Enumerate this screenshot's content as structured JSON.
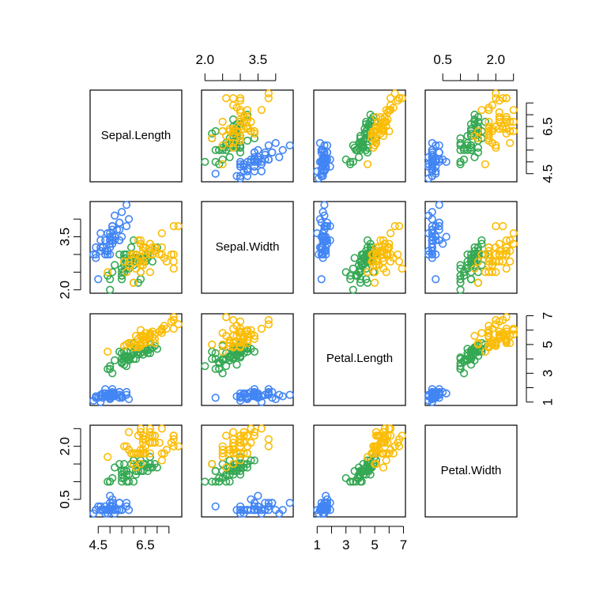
{
  "chart_data": {
    "type": "scatter-matrix",
    "variables": [
      "Sepal.Length",
      "Sepal.Width",
      "Petal.Length",
      "Petal.Width"
    ],
    "ranges": {
      "Sepal.Length": [
        4.3,
        7.9
      ],
      "Sepal.Width": [
        2.0,
        4.4
      ],
      "Petal.Length": [
        1.0,
        6.9
      ],
      "Petal.Width": [
        0.1,
        2.5
      ]
    },
    "axes": {
      "Sepal.Length": {
        "side": "left-bottom",
        "ticks": [
          4.5,
          5.0,
          5.5,
          6.0,
          6.5,
          7.0,
          7.5
        ],
        "labels": [
          "4.5",
          "6.5"
        ]
      },
      "Sepal.Width": {
        "side": "top-left",
        "ticks": [
          2.0,
          2.5,
          3.0,
          3.5,
          4.0
        ],
        "labels": [
          "2.0",
          "3.5"
        ]
      },
      "Petal.Length": {
        "side": "bottom-right",
        "ticks": [
          1,
          2,
          3,
          4,
          5,
          6,
          7
        ],
        "labels": [
          "1",
          "3",
          "5",
          "7"
        ]
      },
      "Petal.Width": {
        "side": "top-left",
        "ticks": [
          0.5,
          1.0,
          1.5,
          2.0,
          2.5
        ],
        "labels": [
          "0.5",
          "2.0"
        ]
      }
    },
    "series": [
      {
        "color": "#4285F4",
        "points": [
          [
            5.1,
            3.5,
            1.4,
            0.2
          ],
          [
            4.9,
            3.0,
            1.4,
            0.2
          ],
          [
            4.7,
            3.2,
            1.3,
            0.2
          ],
          [
            4.6,
            3.1,
            1.5,
            0.2
          ],
          [
            5.0,
            3.6,
            1.4,
            0.2
          ],
          [
            5.4,
            3.9,
            1.7,
            0.4
          ],
          [
            4.6,
            3.4,
            1.4,
            0.3
          ],
          [
            5.0,
            3.4,
            1.5,
            0.2
          ],
          [
            4.4,
            2.9,
            1.4,
            0.2
          ],
          [
            4.9,
            3.1,
            1.5,
            0.1
          ],
          [
            5.4,
            3.7,
            1.5,
            0.2
          ],
          [
            4.8,
            3.4,
            1.6,
            0.2
          ],
          [
            4.8,
            3.0,
            1.4,
            0.1
          ],
          [
            4.3,
            3.0,
            1.1,
            0.1
          ],
          [
            5.8,
            4.0,
            1.2,
            0.2
          ],
          [
            5.7,
            4.4,
            1.5,
            0.4
          ],
          [
            5.4,
            3.9,
            1.3,
            0.4
          ],
          [
            5.1,
            3.5,
            1.4,
            0.3
          ],
          [
            5.7,
            3.8,
            1.7,
            0.3
          ],
          [
            5.1,
            3.8,
            1.5,
            0.3
          ],
          [
            5.4,
            3.4,
            1.7,
            0.2
          ],
          [
            5.1,
            3.7,
            1.5,
            0.4
          ],
          [
            4.6,
            3.6,
            1.0,
            0.2
          ],
          [
            5.1,
            3.3,
            1.7,
            0.5
          ],
          [
            4.8,
            3.4,
            1.9,
            0.2
          ],
          [
            5.0,
            3.0,
            1.6,
            0.2
          ],
          [
            5.0,
            3.4,
            1.6,
            0.4
          ],
          [
            5.2,
            3.5,
            1.5,
            0.2
          ],
          [
            5.2,
            3.4,
            1.4,
            0.2
          ],
          [
            4.7,
            3.2,
            1.6,
            0.2
          ],
          [
            4.8,
            3.1,
            1.6,
            0.2
          ],
          [
            5.4,
            3.4,
            1.5,
            0.4
          ],
          [
            5.2,
            4.1,
            1.5,
            0.1
          ],
          [
            5.5,
            4.2,
            1.4,
            0.2
          ],
          [
            4.9,
            3.1,
            1.5,
            0.2
          ],
          [
            5.0,
            3.2,
            1.2,
            0.2
          ],
          [
            5.5,
            3.5,
            1.3,
            0.2
          ],
          [
            4.9,
            3.6,
            1.4,
            0.1
          ],
          [
            4.4,
            3.0,
            1.3,
            0.2
          ],
          [
            5.1,
            3.4,
            1.5,
            0.2
          ],
          [
            5.0,
            3.5,
            1.3,
            0.3
          ],
          [
            4.5,
            2.3,
            1.3,
            0.3
          ],
          [
            4.4,
            3.2,
            1.3,
            0.2
          ],
          [
            5.0,
            3.5,
            1.6,
            0.6
          ],
          [
            5.1,
            3.8,
            1.9,
            0.4
          ],
          [
            4.8,
            3.0,
            1.4,
            0.3
          ],
          [
            5.1,
            3.8,
            1.6,
            0.2
          ],
          [
            4.6,
            3.2,
            1.4,
            0.2
          ],
          [
            5.3,
            3.7,
            1.5,
            0.2
          ],
          [
            5.0,
            3.3,
            1.4,
            0.2
          ]
        ]
      },
      {
        "color": "#34A853",
        "points": [
          [
            7.0,
            3.2,
            4.7,
            1.4
          ],
          [
            6.4,
            3.2,
            4.5,
            1.5
          ],
          [
            6.9,
            3.1,
            4.9,
            1.5
          ],
          [
            5.5,
            2.3,
            4.0,
            1.3
          ],
          [
            6.5,
            2.8,
            4.6,
            1.5
          ],
          [
            5.7,
            2.8,
            4.5,
            1.3
          ],
          [
            6.3,
            3.3,
            4.7,
            1.6
          ],
          [
            4.9,
            2.4,
            3.3,
            1.0
          ],
          [
            6.6,
            2.9,
            4.6,
            1.3
          ],
          [
            5.2,
            2.7,
            3.9,
            1.4
          ],
          [
            5.0,
            2.0,
            3.5,
            1.0
          ],
          [
            5.9,
            3.0,
            4.2,
            1.5
          ],
          [
            6.0,
            2.2,
            4.0,
            1.0
          ],
          [
            6.1,
            2.9,
            4.7,
            1.4
          ],
          [
            5.6,
            2.9,
            3.6,
            1.3
          ],
          [
            6.7,
            3.1,
            4.4,
            1.4
          ],
          [
            5.6,
            3.0,
            4.5,
            1.5
          ],
          [
            5.8,
            2.7,
            4.1,
            1.0
          ],
          [
            6.2,
            2.2,
            4.5,
            1.5
          ],
          [
            5.6,
            2.5,
            3.9,
            1.1
          ],
          [
            5.9,
            3.2,
            4.8,
            1.8
          ],
          [
            6.1,
            2.8,
            4.0,
            1.3
          ],
          [
            6.3,
            2.5,
            4.9,
            1.5
          ],
          [
            6.1,
            2.8,
            4.7,
            1.2
          ],
          [
            6.4,
            2.9,
            4.3,
            1.3
          ],
          [
            6.6,
            3.0,
            4.4,
            1.4
          ],
          [
            6.8,
            2.8,
            4.8,
            1.4
          ],
          [
            6.7,
            3.0,
            5.0,
            1.7
          ],
          [
            6.0,
            2.9,
            4.5,
            1.5
          ],
          [
            5.7,
            2.6,
            3.5,
            1.0
          ],
          [
            5.5,
            2.4,
            3.8,
            1.1
          ],
          [
            5.5,
            2.4,
            3.7,
            1.0
          ],
          [
            5.8,
            2.7,
            3.9,
            1.2
          ],
          [
            6.0,
            2.7,
            5.1,
            1.6
          ],
          [
            5.4,
            3.0,
            4.5,
            1.5
          ],
          [
            6.0,
            3.4,
            4.5,
            1.6
          ],
          [
            6.7,
            3.1,
            4.7,
            1.5
          ],
          [
            6.3,
            2.3,
            4.4,
            1.3
          ],
          [
            5.6,
            3.0,
            4.1,
            1.3
          ],
          [
            5.5,
            2.5,
            4.0,
            1.3
          ],
          [
            5.5,
            2.6,
            4.4,
            1.2
          ],
          [
            6.1,
            3.0,
            4.6,
            1.4
          ],
          [
            5.8,
            2.6,
            4.0,
            1.2
          ],
          [
            5.0,
            2.3,
            3.3,
            1.0
          ],
          [
            5.6,
            2.7,
            4.2,
            1.3
          ],
          [
            5.7,
            3.0,
            4.2,
            1.2
          ],
          [
            5.7,
            2.9,
            4.2,
            1.3
          ],
          [
            6.2,
            2.9,
            4.3,
            1.3
          ],
          [
            5.1,
            2.5,
            3.0,
            1.1
          ],
          [
            5.7,
            2.8,
            4.1,
            1.3
          ]
        ]
      },
      {
        "color": "#FBBC05",
        "points": [
          [
            6.3,
            3.3,
            6.0,
            2.5
          ],
          [
            5.8,
            2.7,
            5.1,
            1.9
          ],
          [
            7.1,
            3.0,
            5.9,
            2.1
          ],
          [
            6.3,
            2.9,
            5.6,
            1.8
          ],
          [
            6.5,
            3.0,
            5.8,
            2.2
          ],
          [
            7.6,
            3.0,
            6.6,
            2.1
          ],
          [
            4.9,
            2.5,
            4.5,
            1.7
          ],
          [
            7.3,
            2.9,
            6.3,
            1.8
          ],
          [
            6.7,
            2.5,
            5.8,
            1.8
          ],
          [
            7.2,
            3.6,
            6.1,
            2.5
          ],
          [
            6.5,
            3.2,
            5.1,
            2.0
          ],
          [
            6.4,
            2.7,
            5.3,
            1.9
          ],
          [
            6.8,
            3.0,
            5.5,
            2.1
          ],
          [
            5.7,
            2.5,
            5.0,
            2.0
          ],
          [
            5.8,
            2.8,
            5.1,
            2.4
          ],
          [
            6.4,
            3.2,
            5.3,
            2.3
          ],
          [
            6.5,
            3.0,
            5.5,
            1.8
          ],
          [
            7.7,
            3.8,
            6.7,
            2.2
          ],
          [
            7.7,
            2.6,
            6.9,
            2.3
          ],
          [
            6.0,
            2.2,
            5.0,
            1.5
          ],
          [
            6.9,
            3.2,
            5.7,
            2.3
          ],
          [
            5.6,
            2.8,
            4.9,
            2.0
          ],
          [
            7.7,
            2.8,
            6.7,
            2.0
          ],
          [
            6.3,
            2.7,
            4.9,
            1.8
          ],
          [
            6.7,
            3.3,
            5.7,
            2.1
          ],
          [
            7.2,
            3.2,
            6.0,
            1.8
          ],
          [
            6.2,
            2.8,
            4.8,
            1.8
          ],
          [
            6.1,
            3.0,
            4.9,
            1.8
          ],
          [
            6.4,
            2.8,
            5.6,
            2.1
          ],
          [
            7.2,
            3.0,
            5.8,
            1.6
          ],
          [
            7.4,
            2.8,
            6.1,
            1.9
          ],
          [
            7.9,
            3.8,
            6.4,
            2.0
          ],
          [
            6.4,
            2.8,
            5.6,
            2.2
          ],
          [
            6.3,
            2.8,
            5.1,
            1.5
          ],
          [
            6.1,
            2.6,
            5.6,
            1.4
          ],
          [
            7.7,
            3.0,
            6.1,
            2.3
          ],
          [
            6.3,
            3.4,
            5.6,
            2.4
          ],
          [
            6.4,
            3.1,
            5.5,
            1.8
          ],
          [
            6.0,
            3.0,
            4.8,
            1.8
          ],
          [
            6.9,
            3.1,
            5.4,
            2.1
          ],
          [
            6.7,
            3.1,
            5.6,
            2.4
          ],
          [
            6.9,
            3.1,
            5.1,
            2.3
          ],
          [
            5.8,
            2.7,
            5.1,
            1.9
          ],
          [
            6.8,
            3.2,
            5.9,
            2.3
          ],
          [
            6.7,
            3.3,
            5.7,
            2.5
          ],
          [
            6.7,
            3.0,
            5.2,
            2.3
          ],
          [
            6.3,
            2.5,
            5.0,
            1.9
          ],
          [
            6.5,
            3.0,
            5.2,
            2.0
          ],
          [
            6.2,
            3.4,
            5.4,
            2.3
          ],
          [
            5.9,
            3.0,
            5.1,
            1.8
          ]
        ]
      }
    ]
  }
}
